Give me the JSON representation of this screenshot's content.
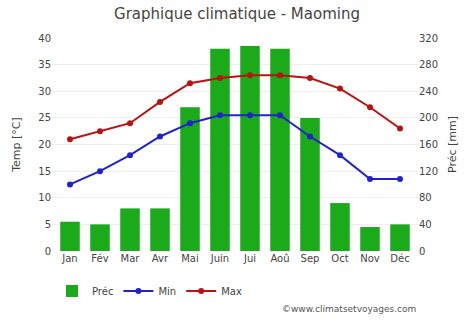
{
  "chart_data": {
    "type": "bar",
    "title": "Graphique climatique - Maoming",
    "categories": [
      "Jan",
      "Fév",
      "Mar",
      "Avr",
      "Mai",
      "Juin",
      "Jui",
      "Aoû",
      "Sep",
      "Oct",
      "Nov",
      "Déc"
    ],
    "series": [
      {
        "name": "Préc",
        "type": "bar",
        "axis": "y2",
        "color": "#1aaa1a",
        "values": [
          44,
          40,
          64,
          64,
          216,
          304,
          308,
          304,
          200,
          72,
          36,
          40
        ]
      },
      {
        "name": "Min",
        "type": "line",
        "color": "#2222cc",
        "marker": "circle",
        "line_style": "solid",
        "values": [
          12.5,
          15.0,
          18.0,
          21.5,
          24.0,
          25.5,
          25.5,
          25.5,
          21.5,
          18.0,
          13.5,
          13.5
        ]
      },
      {
        "name": "Max",
        "type": "line",
        "color": "#bb1111",
        "marker": "circle",
        "line_style": "solid",
        "values": [
          21.0,
          22.5,
          24.0,
          28.0,
          31.5,
          32.5,
          33.0,
          33.0,
          32.5,
          30.5,
          27.0,
          23.0
        ]
      }
    ],
    "ylabel": "Temp [°C]",
    "y2label": "Préc [mm]",
    "ylim": [
      0,
      40
    ],
    "yticks": [
      0,
      5,
      10,
      15,
      20,
      25,
      30,
      35,
      40
    ],
    "y2lim": [
      0,
      320
    ],
    "y2ticks": [
      0,
      40,
      80,
      120,
      160,
      200,
      240,
      280,
      320
    ],
    "grid": true,
    "legend": "bottom",
    "annotations": [
      "©www.climatsetvoyages.com"
    ]
  }
}
